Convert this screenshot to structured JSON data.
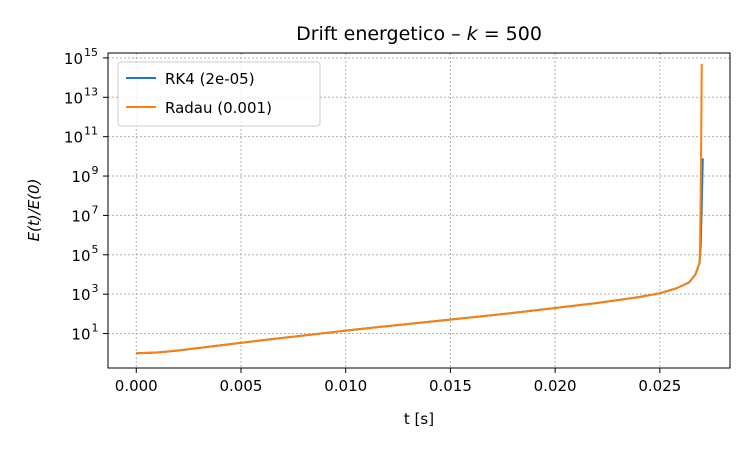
{
  "chart_data": {
    "type": "line",
    "title_prefix": "Drift energetico  –  ",
    "title_var": "k",
    "title_eq": " = 500",
    "xlabel": "t [s]",
    "ylabel": "E(t)/E(0)",
    "xlim": [
      -0.00135,
      0.02835
    ],
    "ylog": true,
    "ylim_log10": [
      -0.75,
      15.25
    ],
    "xticks": [
      {
        "value": 0.0,
        "label": "0.000"
      },
      {
        "value": 0.005,
        "label": "0.005"
      },
      {
        "value": 0.01,
        "label": "0.010"
      },
      {
        "value": 0.015,
        "label": "0.015"
      },
      {
        "value": 0.02,
        "label": "0.020"
      },
      {
        "value": 0.025,
        "label": "0.025"
      }
    ],
    "yticks": [
      {
        "exp": 1,
        "base": "10",
        "sup": "1"
      },
      {
        "exp": 3,
        "base": "10",
        "sup": "3"
      },
      {
        "exp": 5,
        "base": "10",
        "sup": "5"
      },
      {
        "exp": 7,
        "base": "10",
        "sup": "7"
      },
      {
        "exp": 9,
        "base": "10",
        "sup": "9"
      },
      {
        "exp": 11,
        "base": "10",
        "sup": "11"
      },
      {
        "exp": 13,
        "base": "10",
        "sup": "13"
      },
      {
        "exp": 15,
        "base": "10",
        "sup": "15"
      }
    ],
    "grid": true,
    "legend_position": "upper-left",
    "series": [
      {
        "name": "RK4 (2e-05)",
        "color": "#1f77b4",
        "x": [
          0.0,
          0.001,
          0.002,
          0.004,
          0.006,
          0.008,
          0.01,
          0.012,
          0.014,
          0.016,
          0.018,
          0.02,
          0.022,
          0.024,
          0.025,
          0.0258,
          0.0264,
          0.0267,
          0.0269,
          0.02695,
          0.027,
          0.02705
        ],
        "y_log10": [
          0.0,
          0.04,
          0.14,
          0.4,
          0.66,
          0.9,
          1.15,
          1.38,
          1.6,
          1.82,
          2.05,
          2.3,
          2.55,
          2.85,
          3.05,
          3.3,
          3.6,
          4.0,
          4.6,
          5.5,
          7.5,
          9.9
        ]
      },
      {
        "name": "Radau (0.001)",
        "color": "#ff7f0e",
        "x": [
          0.0,
          0.001,
          0.002,
          0.004,
          0.006,
          0.008,
          0.01,
          0.012,
          0.014,
          0.016,
          0.018,
          0.02,
          0.022,
          0.024,
          0.025,
          0.0258,
          0.0264,
          0.0267,
          0.0269,
          0.02692,
          0.02695,
          0.02698,
          0.027
        ],
        "y_log10": [
          0.0,
          0.04,
          0.14,
          0.4,
          0.66,
          0.9,
          1.15,
          1.38,
          1.6,
          1.82,
          2.05,
          2.3,
          2.55,
          2.85,
          3.05,
          3.3,
          3.6,
          4.0,
          4.6,
          5.6,
          8.0,
          11.5,
          14.7
        ]
      }
    ]
  }
}
